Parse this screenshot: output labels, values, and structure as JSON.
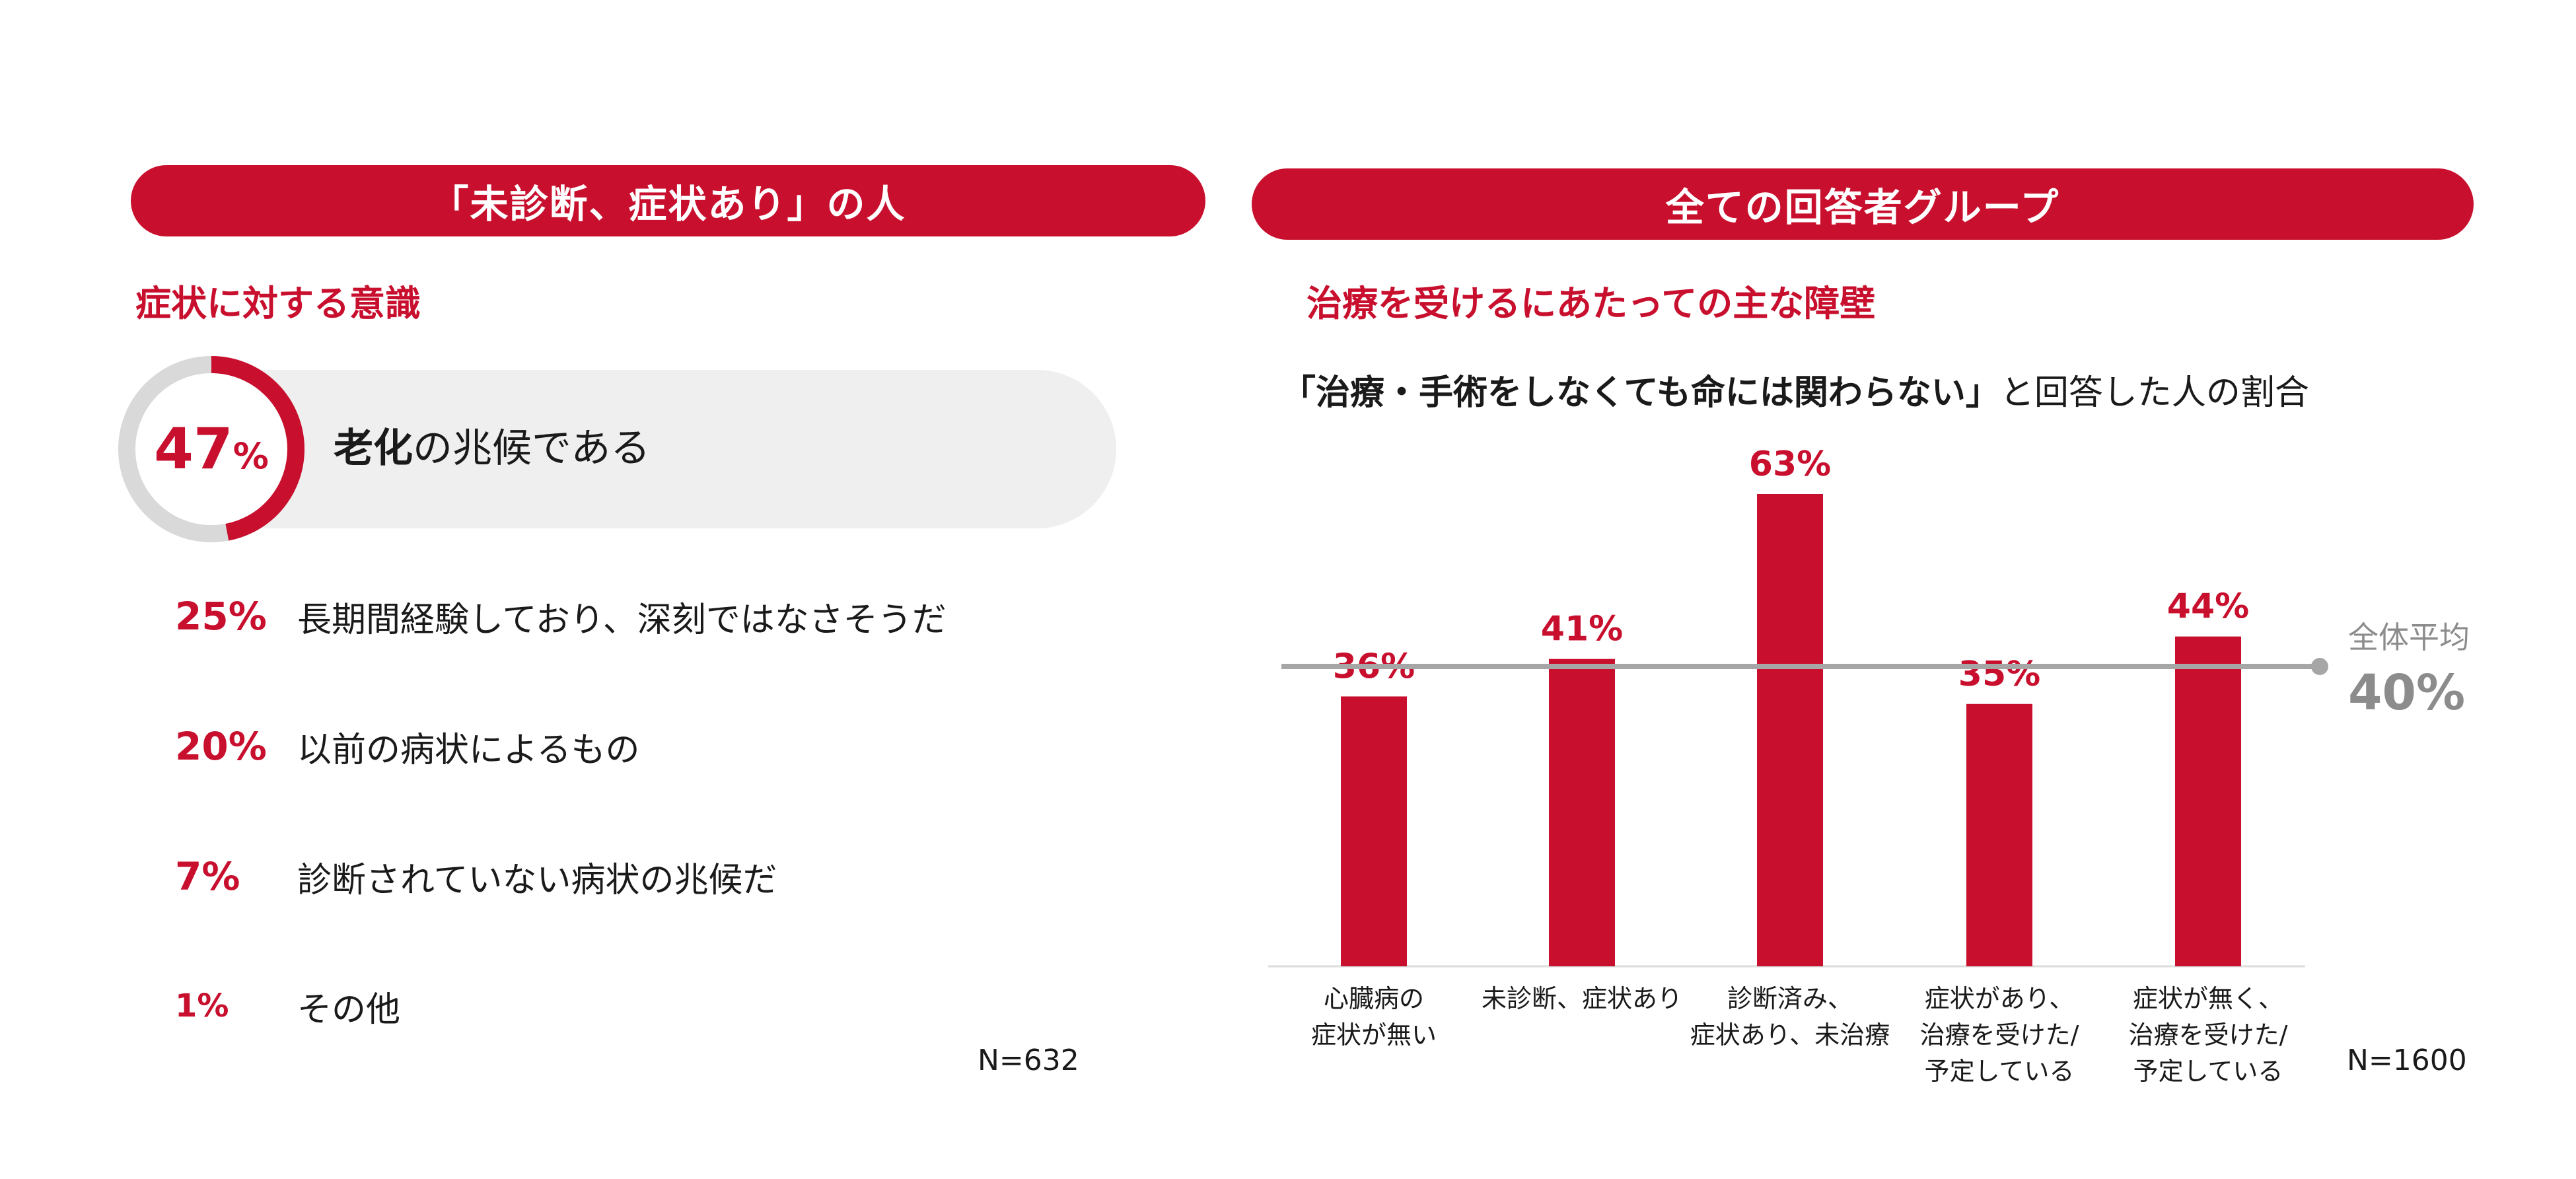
{
  "left_panel": {
    "header": "「未診断、症状あり」の人",
    "section_title": "症状に対する意識",
    "highlight": {
      "value": 47,
      "value_text": "47",
      "pct_sign": "%",
      "label_bold": "老化",
      "label_rest": "の兆候である"
    },
    "items": [
      {
        "pct": "25%",
        "label": "長期間経験しており、深刻ではなさそうだ"
      },
      {
        "pct": "20%",
        "label": "以前の病状によるもの"
      },
      {
        "pct": "7%",
        "label": "診断されていない病状の兆候だ"
      },
      {
        "pct": "1%",
        "label": "その他"
      }
    ],
    "n_note": "N=632"
  },
  "right_panel": {
    "header": "全ての回答者グループ",
    "section_title": "治療を受けるにあたっての主な障壁",
    "subtitle_bold": "「治療・手術をしなくても命には関わらない」",
    "subtitle_rest": "と回答した人の割合",
    "n_note": "N=1600"
  },
  "colors": {
    "accent": "#c8102e",
    "avg_line": "#a6a6a6",
    "highlight_bg": "#efefef"
  },
  "chart_data": {
    "type": "bar",
    "title": "「治療・手術をしなくても命には関わらない」と回答した人の割合",
    "categories": [
      [
        "心臓病の",
        "症状が無い"
      ],
      [
        "未診断、症状あり"
      ],
      [
        "診断済み、",
        "症状あり、未治療"
      ],
      [
        "症状があり、",
        "治療を受けた/",
        "予定している"
      ],
      [
        "症状が無く、",
        "治療を受けた/",
        "予定している"
      ]
    ],
    "values": [
      36,
      41,
      63,
      35,
      44
    ],
    "value_labels": [
      "36%",
      "41%",
      "63%",
      "35%",
      "44%"
    ],
    "reference_line": {
      "label": "全体平均",
      "value": 40,
      "value_text": "40%"
    },
    "ylim": [
      0,
      63
    ]
  }
}
